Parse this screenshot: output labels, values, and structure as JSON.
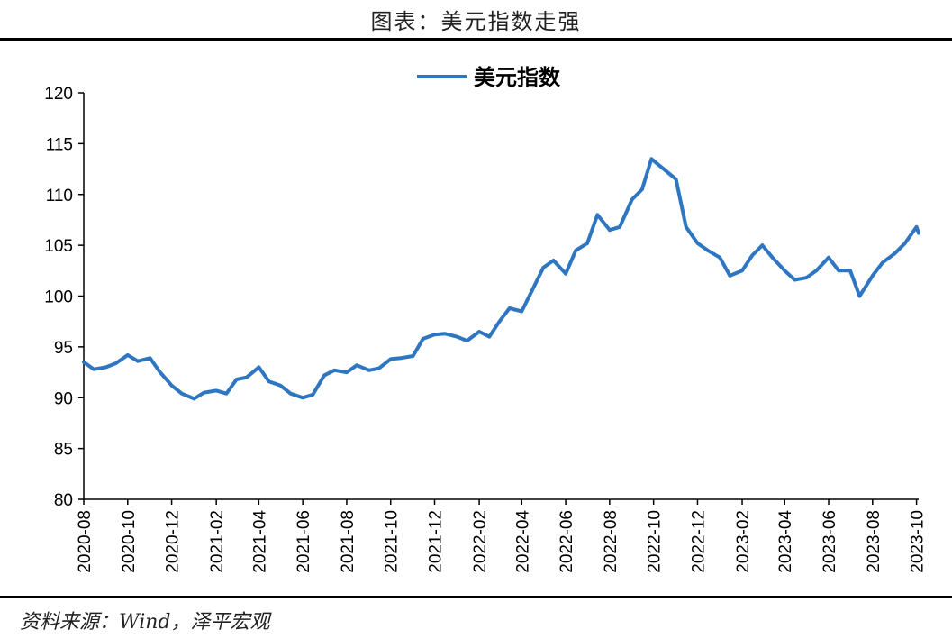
{
  "header": {
    "title": "图表：美元指数走强"
  },
  "footer": {
    "source": "资料来源：Wind，泽平宏观"
  },
  "colors": {
    "line": "#2E75C2",
    "axis": "#000000"
  },
  "chart_data": {
    "type": "line",
    "title": "",
    "xlabel": "",
    "ylabel": "",
    "ylim": [
      80,
      120
    ],
    "yticks": [
      "120",
      "115",
      "110",
      "105",
      "100",
      "95",
      "90",
      "85",
      "80"
    ],
    "xticks": [
      "2020-08",
      "2020-10",
      "2020-12",
      "2021-02",
      "2021-04",
      "2021-06",
      "2021-08",
      "2021-10",
      "2021-12",
      "2022-02",
      "2022-04",
      "2022-06",
      "2022-08",
      "2022-10",
      "2022-12",
      "2023-02",
      "2023-04",
      "2023-06",
      "2023-08",
      "2023-10"
    ],
    "grid": false,
    "legend": {
      "position": "top-center"
    },
    "series": [
      {
        "name": "美元指数",
        "x": [
          "2020-08-01",
          "2020-08-15",
          "2020-09-01",
          "2020-09-15",
          "2020-10-01",
          "2020-10-15",
          "2020-11-01",
          "2020-11-15",
          "2020-12-01",
          "2020-12-15",
          "2021-01-01",
          "2021-01-15",
          "2021-02-01",
          "2021-02-15",
          "2021-03-01",
          "2021-03-15",
          "2021-04-01",
          "2021-04-15",
          "2021-05-01",
          "2021-05-15",
          "2021-06-01",
          "2021-06-15",
          "2021-07-01",
          "2021-07-15",
          "2021-08-01",
          "2021-08-15",
          "2021-09-01",
          "2021-09-15",
          "2021-10-01",
          "2021-10-15",
          "2021-11-01",
          "2021-11-15",
          "2021-12-01",
          "2021-12-15",
          "2022-01-01",
          "2022-01-15",
          "2022-02-01",
          "2022-02-15",
          "2022-03-01",
          "2022-03-15",
          "2022-04-01",
          "2022-04-15",
          "2022-05-01",
          "2022-05-15",
          "2022-06-01",
          "2022-06-15",
          "2022-07-01",
          "2022-07-15",
          "2022-08-01",
          "2022-08-15",
          "2022-09-01",
          "2022-09-15",
          "2022-09-28",
          "2022-10-15",
          "2022-11-01",
          "2022-11-15",
          "2022-12-01",
          "2022-12-15",
          "2023-01-01",
          "2023-01-15",
          "2023-02-01",
          "2023-02-15",
          "2023-03-01",
          "2023-03-15",
          "2023-04-01",
          "2023-04-15",
          "2023-05-01",
          "2023-05-15",
          "2023-06-01",
          "2023-06-15",
          "2023-07-01",
          "2023-07-14",
          "2023-08-01",
          "2023-08-15",
          "2023-09-01",
          "2023-09-15",
          "2023-10-01",
          "2023-10-04"
        ],
        "values": [
          93.5,
          92.8,
          93.0,
          93.4,
          94.2,
          93.6,
          93.9,
          92.5,
          91.2,
          90.4,
          89.9,
          90.5,
          90.7,
          90.4,
          91.8,
          92.0,
          93.0,
          91.6,
          91.2,
          90.4,
          90.0,
          90.3,
          92.2,
          92.7,
          92.5,
          93.2,
          92.7,
          92.9,
          93.8,
          93.9,
          94.1,
          95.8,
          96.2,
          96.3,
          96.0,
          95.6,
          96.5,
          96.0,
          97.5,
          98.8,
          98.5,
          100.5,
          102.8,
          103.5,
          102.2,
          104.5,
          105.2,
          108.0,
          106.5,
          106.8,
          109.5,
          110.5,
          113.5,
          112.5,
          111.5,
          106.8,
          105.2,
          104.5,
          103.8,
          102.0,
          102.5,
          104.0,
          105.0,
          103.8,
          102.5,
          101.6,
          101.8,
          102.5,
          103.8,
          102.5,
          102.5,
          100.0,
          102.0,
          103.3,
          104.2,
          105.2,
          106.8,
          106.2
        ]
      }
    ]
  }
}
